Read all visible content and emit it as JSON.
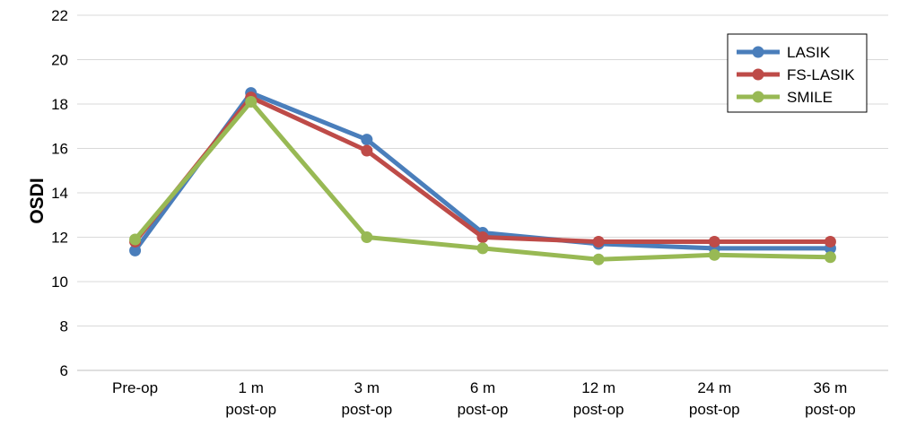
{
  "chart_data": {
    "type": "line",
    "title": "",
    "xlabel": "",
    "ylabel": "OSDI",
    "ylim": [
      6,
      22
    ],
    "yticks": [
      6,
      8,
      10,
      12,
      14,
      16,
      18,
      20,
      22
    ],
    "grid": true,
    "legend_position": "top-right",
    "categories": [
      [
        "Pre-op"
      ],
      [
        "1 m",
        "post-op"
      ],
      [
        "3 m",
        "post-op"
      ],
      [
        "6 m",
        "post-op"
      ],
      [
        "12 m",
        "post-op"
      ],
      [
        "24 m",
        "post-op"
      ],
      [
        "36 m",
        "post-op"
      ]
    ],
    "series": [
      {
        "name": "LASIK",
        "color": "#4a7ebb",
        "values": [
          11.4,
          18.5,
          16.4,
          12.2,
          11.7,
          11.5,
          11.5
        ]
      },
      {
        "name": "FS-LASIK",
        "color": "#be4b48",
        "values": [
          11.8,
          18.3,
          15.9,
          12.0,
          11.8,
          11.8,
          11.8
        ]
      },
      {
        "name": "SMILE",
        "color": "#98b954",
        "values": [
          11.9,
          18.1,
          12.0,
          11.5,
          11.0,
          11.2,
          11.1
        ]
      }
    ]
  }
}
